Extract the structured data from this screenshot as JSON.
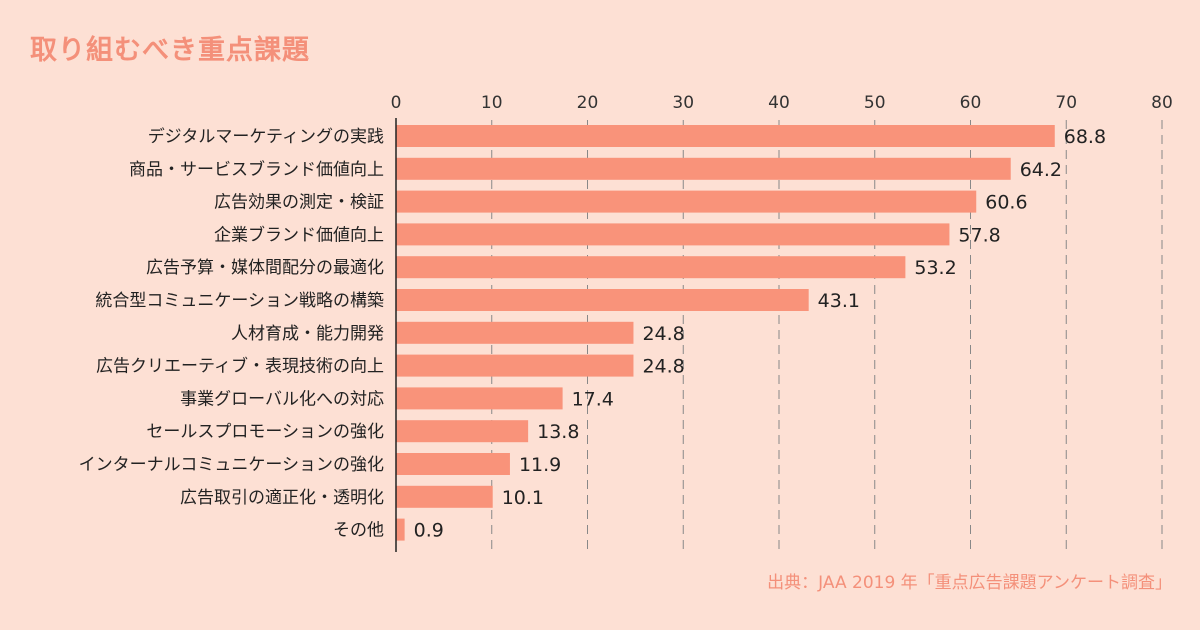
{
  "title": "取り組むべき重点課題",
  "source": "出典：JAA 2019 年「重点広告課題アンケート調査」",
  "colors": {
    "bar": "#f9937a",
    "title": "#f4907a",
    "background": "#fde0d4",
    "grid": "#888888"
  },
  "chart_data": {
    "type": "bar",
    "orientation": "horizontal",
    "title": "",
    "xlabel": "",
    "ylabel": "",
    "xlim": [
      0,
      80
    ],
    "ticks": [
      0,
      10,
      20,
      30,
      40,
      50,
      60,
      70,
      80
    ],
    "grid": true,
    "categories": [
      "デジタルマーケティングの実践",
      "商品・サービスブランド価値向上",
      "広告効果の測定・検証",
      "企業ブランド価値向上",
      "広告予算・媒体間配分の最適化",
      "統合型コミュニケーション戦略の構築",
      "人材育成・能力開発",
      "広告クリエーティブ・表現技術の向上",
      "事業グローバル化への対応",
      "セールスプロモーションの強化",
      "インターナルコミュニケーションの強化",
      "広告取引の適正化・透明化",
      "その他"
    ],
    "values": [
      68.8,
      64.2,
      60.6,
      57.8,
      53.2,
      43.1,
      24.8,
      24.8,
      17.4,
      13.8,
      11.9,
      10.1,
      0.9
    ],
    "value_labels": [
      "68.8",
      "64.2",
      "60.6",
      "57.8",
      "53.2",
      "43.1",
      "24.8",
      "24.8",
      "17.4",
      "13.8",
      "11.9",
      "10.1",
      "0.9"
    ]
  }
}
